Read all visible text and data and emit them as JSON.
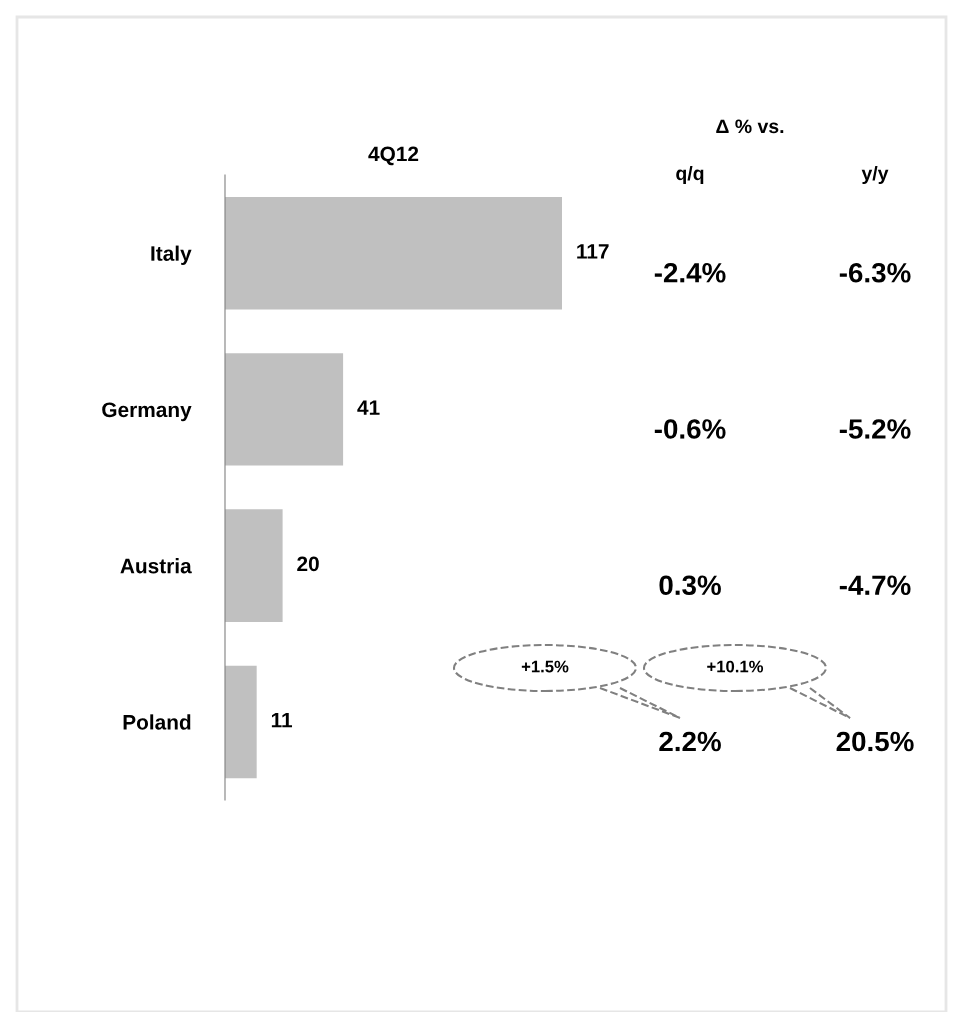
{
  "chart_data": {
    "type": "bar",
    "orientation": "horizontal",
    "title": "4Q12",
    "categories": [
      "Italy",
      "Germany",
      "Austria",
      "Poland"
    ],
    "values": [
      117,
      41,
      20,
      11
    ],
    "color": "#c0c0c0",
    "data_labels": true,
    "grid": false,
    "legend": false,
    "annotations": [
      "Δ % vs.",
      "q/q",
      "y/y",
      "-2.4%",
      "-6.3%",
      "-0.6%",
      "-5.2%",
      "0.3%",
      "-4.7%",
      "2.2%",
      "20.5%",
      "+1.5%",
      "+10.1%"
    ]
  }
}
